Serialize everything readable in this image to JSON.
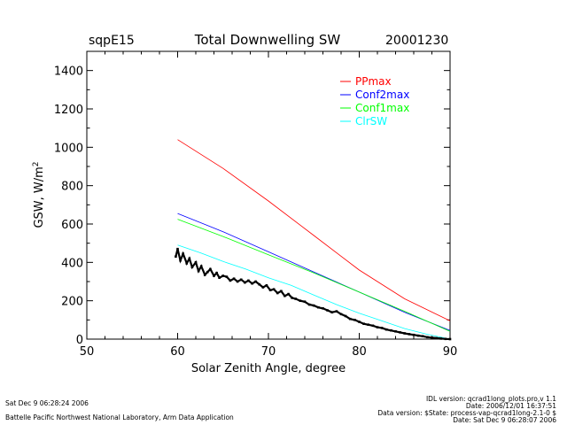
{
  "header": {
    "site": "sqpE15",
    "title": "Total Downwelling SW",
    "date": "20001230"
  },
  "chart_data": {
    "type": "line",
    "title": "Total Downwelling SW",
    "xlabel": "Solar Zenith Angle, degree",
    "ylabel_main": "GSW, W/m",
    "ylabel_sup": "2",
    "xlim": [
      50,
      90
    ],
    "ylim": [
      0,
      1500
    ],
    "xticks": [
      50,
      60,
      70,
      80,
      90
    ],
    "yticks": [
      0,
      200,
      400,
      600,
      800,
      1000,
      1200,
      1400
    ],
    "grid": false,
    "legend_position": "top-right",
    "series": [
      {
        "name": "PPmax",
        "color": "#ff0000",
        "x": [
          60,
          65,
          70,
          75,
          80,
          85,
          90
        ],
        "y": [
          1040,
          890,
          720,
          540,
          360,
          210,
          95
        ]
      },
      {
        "name": "Conf2max",
        "color": "#0000ff",
        "x": [
          60,
          65,
          70,
          75,
          80,
          85,
          90
        ],
        "y": [
          655,
          560,
          455,
          350,
          245,
          140,
          45
        ]
      },
      {
        "name": "Conf1max",
        "color": "#00ff00",
        "x": [
          60,
          65,
          70,
          75,
          80,
          85,
          90
        ],
        "y": [
          625,
          535,
          440,
          345,
          245,
          145,
          40
        ]
      },
      {
        "name": "ClrSW",
        "color": "#00ffff",
        "x": [
          60,
          62.5,
          65,
          67.5,
          70,
          72.5,
          75,
          77.5,
          80,
          82.5,
          85,
          87.5,
          90
        ],
        "y": [
          490,
          450,
          405,
          365,
          320,
          280,
          230,
          180,
          135,
          95,
          55,
          25,
          0
        ]
      }
    ],
    "measured": {
      "name": "",
      "color": "#000000",
      "x": [
        59.8,
        60,
        60.3,
        60.6,
        61,
        61.3,
        61.6,
        62,
        62.3,
        62.6,
        63,
        63.3,
        63.6,
        64,
        64.3,
        64.6,
        65,
        65.4,
        65.8,
        66.2,
        66.6,
        67,
        67.4,
        67.8,
        68.2,
        68.6,
        69,
        69.4,
        69.8,
        70.2,
        70.6,
        71,
        71.4,
        71.8,
        72.2,
        72.6,
        73,
        73.5,
        74,
        74.5,
        75,
        75.5,
        76,
        76.5,
        77,
        77.5,
        78,
        78.5,
        79,
        79.5,
        80,
        80.5,
        81,
        81.5,
        82,
        82.5,
        83,
        83.5,
        84,
        84.5,
        85,
        85.5,
        86,
        86.5,
        87,
        87.5,
        88,
        88.5,
        89,
        89.5,
        90
      ],
      "y": [
        430,
        470,
        410,
        445,
        395,
        420,
        375,
        400,
        355,
        380,
        335,
        350,
        365,
        330,
        345,
        320,
        330,
        325,
        305,
        315,
        300,
        310,
        295,
        305,
        290,
        300,
        285,
        270,
        280,
        255,
        260,
        240,
        250,
        225,
        235,
        215,
        210,
        200,
        195,
        180,
        175,
        165,
        160,
        150,
        140,
        145,
        130,
        120,
        105,
        100,
        90,
        80,
        75,
        70,
        62,
        58,
        50,
        45,
        40,
        35,
        30,
        26,
        22,
        18,
        15,
        10,
        8,
        5,
        3,
        1,
        0
      ]
    }
  },
  "footer": {
    "left_date": "Sat Dec  9 06:28:24 2006",
    "left_org": "Battelle Pacific Northwest National Laboratory, Arm Data Application",
    "right_line1": "IDL version: qcrad1long_plots.pro,v 1.1",
    "right_line2": "Date: 2006/12/01 16:37:51",
    "right_line3": "Data version: $State: process-vap-qcrad1long-2.1-0 $",
    "right_line4": "Date: Sat Dec  9 06:28:07 2006"
  }
}
